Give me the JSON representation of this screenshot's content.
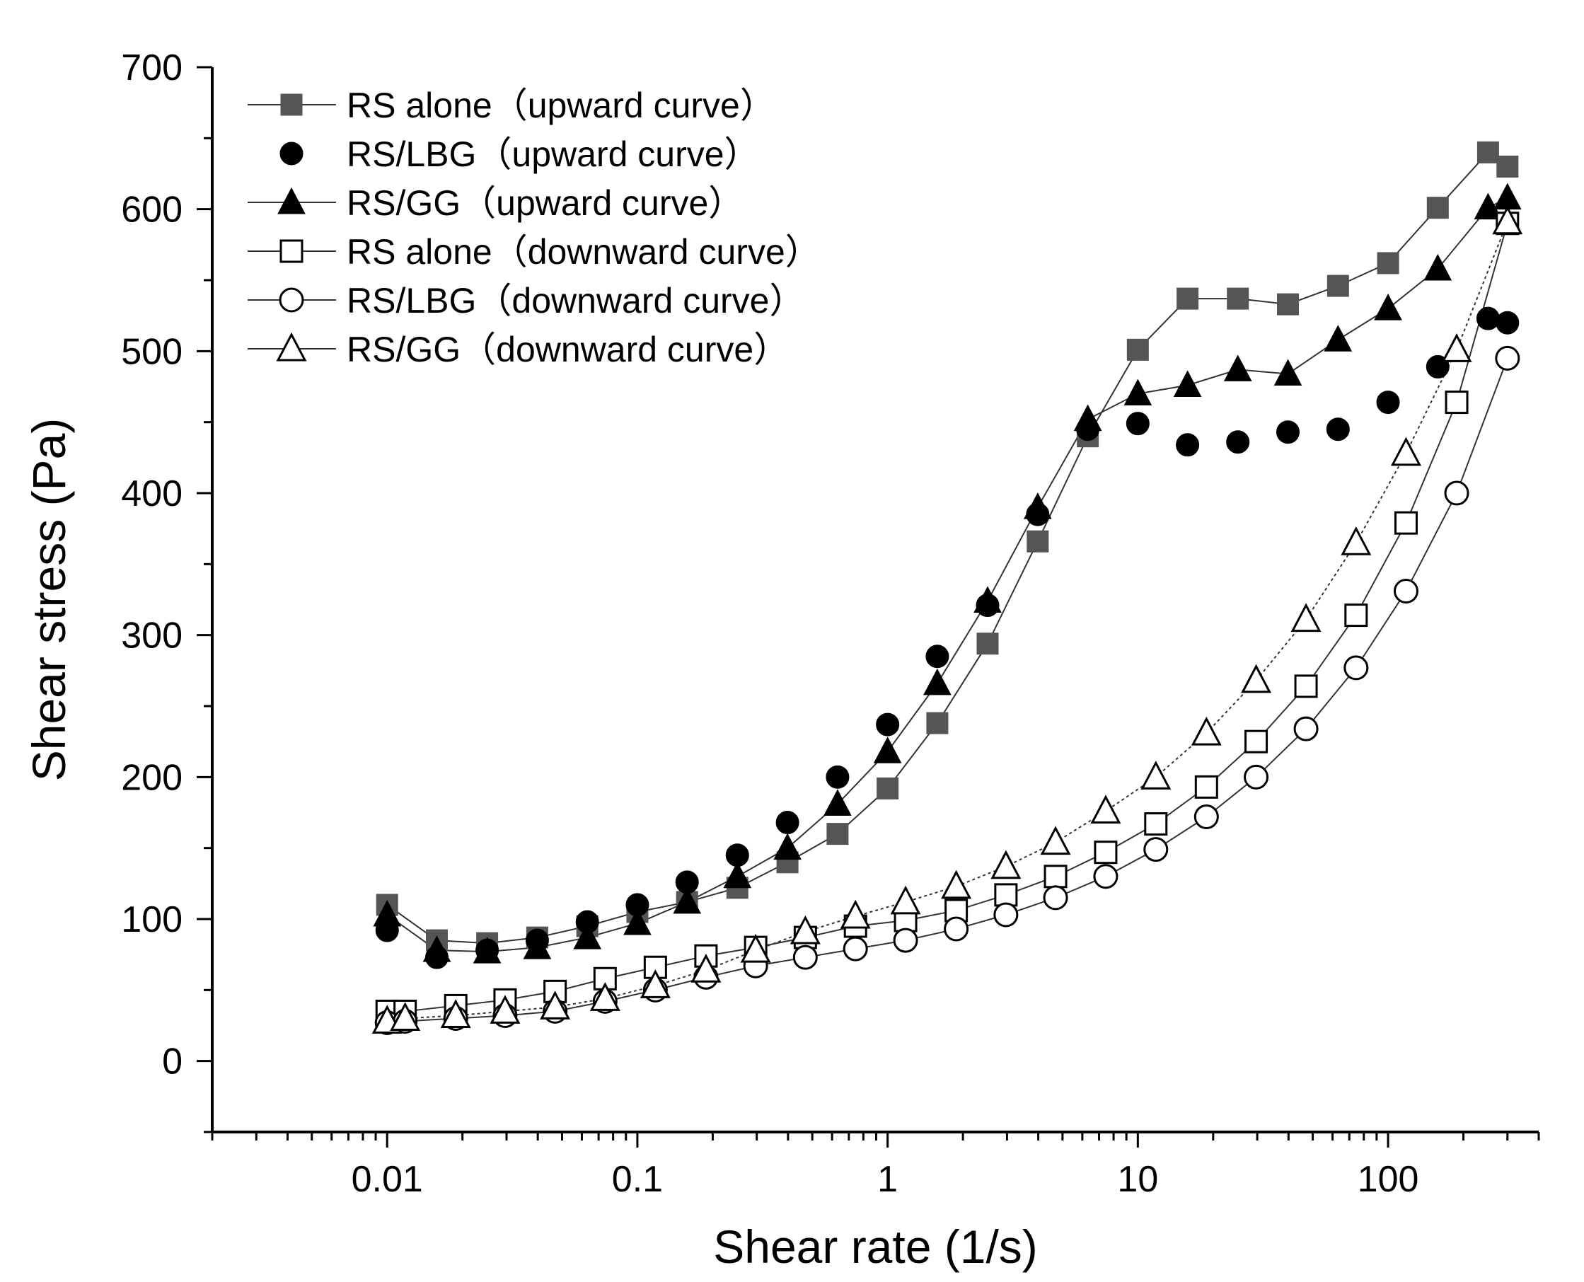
{
  "chart_data": {
    "type": "scatter",
    "title": "",
    "xlabel": "Shear rate (1/s)",
    "ylabel": "Shear stress (Pa)",
    "xscale": "log",
    "xlim": [
      0.002,
      400
    ],
    "ylim": [
      -50,
      700
    ],
    "x_ticks": [
      0.01,
      0.1,
      1,
      10,
      100
    ],
    "x_tick_labels": [
      "0.01",
      "0.1",
      "1",
      "10",
      "100"
    ],
    "y_ticks": [
      0,
      100,
      200,
      300,
      400,
      500,
      600,
      700
    ],
    "y_tick_labels": [
      "0",
      "100",
      "200",
      "300",
      "400",
      "500",
      "600",
      "700"
    ],
    "grid": false,
    "legend_position": "top-left",
    "series": [
      {
        "name": "RS alone（upward curve）",
        "marker": "square",
        "filled": true,
        "color": "#555555",
        "line": "solid",
        "x": [
          0.01,
          0.0158,
          0.0251,
          0.0398,
          0.0631,
          0.1,
          0.158,
          0.251,
          0.398,
          0.631,
          1,
          1.58,
          2.51,
          3.98,
          6.31,
          10,
          15.8,
          25.1,
          39.8,
          63.1,
          100,
          158,
          251,
          300
        ],
        "y": [
          110,
          85,
          83,
          87,
          95,
          105,
          112,
          122,
          140,
          160,
          192,
          238,
          294,
          366,
          440,
          501,
          537,
          537,
          533,
          546,
          562,
          601,
          640,
          630
        ]
      },
      {
        "name": "RS/LBG（upward curve）",
        "marker": "circle",
        "filled": true,
        "color": "#000000",
        "line": "none",
        "x": [
          0.01,
          0.0158,
          0.0251,
          0.0398,
          0.0631,
          0.1,
          0.158,
          0.251,
          0.398,
          0.631,
          1,
          1.58,
          2.51,
          3.98,
          6.31,
          10,
          15.8,
          25.1,
          39.8,
          63.1,
          100,
          158,
          251,
          300
        ],
        "y": [
          92,
          73,
          78,
          85,
          98,
          110,
          126,
          145,
          168,
          200,
          237,
          285,
          321,
          385,
          445,
          449,
          434,
          436,
          443,
          445,
          464,
          489,
          523,
          520
        ]
      },
      {
        "name": "RS/GG（upward curve）",
        "marker": "triangle",
        "filled": true,
        "color": "#000000",
        "line": "solid",
        "x": [
          0.01,
          0.0158,
          0.0251,
          0.0398,
          0.0631,
          0.1,
          0.158,
          0.251,
          0.398,
          0.631,
          1,
          1.58,
          2.51,
          3.98,
          6.31,
          10,
          15.8,
          25.1,
          39.8,
          63.1,
          100,
          158,
          251,
          300
        ],
        "y": [
          103,
          78,
          77,
          80,
          87,
          97,
          112,
          130,
          150,
          181,
          218,
          266,
          324,
          390,
          452,
          470,
          476,
          487,
          484,
          508,
          530,
          558,
          601,
          608
        ]
      },
      {
        "name": "RS alone（downward curve）",
        "marker": "square",
        "filled": false,
        "color": "#000000",
        "line": "solid",
        "x": [
          0.01,
          0.0118,
          0.0188,
          0.0296,
          0.0469,
          0.0743,
          0.118,
          0.188,
          0.297,
          0.469,
          0.744,
          1.18,
          1.88,
          2.97,
          4.69,
          7.44,
          11.8,
          18.8,
          29.7,
          47,
          74.5,
          118,
          188,
          300
        ],
        "y": [
          35,
          35,
          39,
          43,
          49,
          58,
          66,
          74,
          80,
          87,
          95,
          99,
          106,
          117,
          130,
          147,
          167,
          193,
          225,
          264,
          314,
          379,
          464,
          590
        ]
      },
      {
        "name": "RS/LBG（downward curve）",
        "marker": "circle",
        "filled": false,
        "color": "#000000",
        "line": "solid",
        "x": [
          0.01,
          0.0118,
          0.0188,
          0.0296,
          0.0469,
          0.0743,
          0.118,
          0.188,
          0.297,
          0.469,
          0.744,
          1.18,
          1.88,
          2.97,
          4.69,
          7.44,
          11.8,
          18.8,
          29.7,
          47,
          74.5,
          118,
          188,
          300
        ],
        "y": [
          27,
          28,
          30,
          32,
          35,
          42,
          50,
          59,
          67,
          73,
          79,
          85,
          93,
          103,
          115,
          130,
          149,
          172,
          200,
          234,
          277,
          331,
          400,
          495
        ]
      },
      {
        "name": "RS/GG（downward curve）",
        "marker": "triangle",
        "filled": false,
        "color": "#000000",
        "line": "dotted",
        "x": [
          0.01,
          0.0118,
          0.0188,
          0.0296,
          0.0469,
          0.0743,
          0.118,
          0.188,
          0.297,
          0.469,
          0.744,
          1.18,
          1.88,
          2.97,
          4.69,
          7.44,
          11.8,
          18.8,
          29.7,
          47,
          74.5,
          118,
          188,
          300
        ],
        "y": [
          28,
          30,
          32,
          35,
          38,
          44,
          53,
          64,
          78,
          91,
          102,
          112,
          123,
          137,
          154,
          176,
          200,
          231,
          268,
          311,
          365,
          428,
          501,
          591
        ]
      }
    ]
  }
}
